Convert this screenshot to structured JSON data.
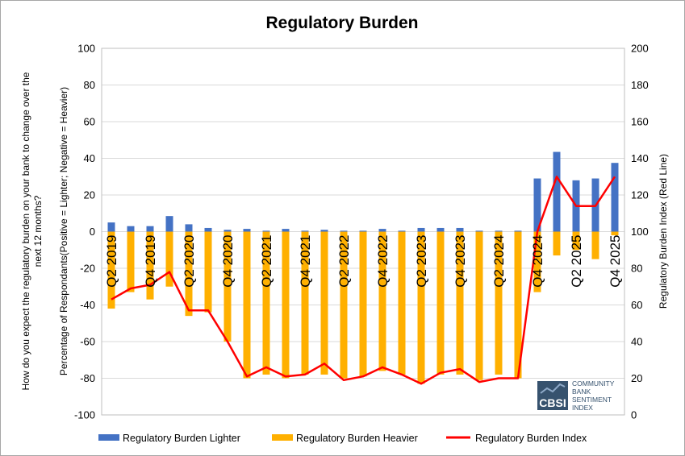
{
  "chart_data": {
    "type": "bar",
    "title": "Regulatory Burden",
    "ylabel_lines": [
      "How do you expect the regulatory burden on your bank to change over the",
      "next 12 months?"
    ],
    "ylabel_inner": "Percentage of Respondants(Positive = Lighter; Negative = Heavier)",
    "y2label": "Regulatory Burden Index (Red Line)",
    "ylim": [
      -100,
      100
    ],
    "y2lim": [
      0,
      200
    ],
    "yticks": [
      "100",
      "80",
      "60",
      "40",
      "20",
      "0",
      "-20",
      "-40",
      "-60",
      "-80",
      "-100"
    ],
    "y2ticks": [
      "200",
      "180",
      "160",
      "140",
      "120",
      "100",
      "80",
      "60",
      "40",
      "20",
      "0"
    ],
    "grid": true,
    "legend_position": "bottom",
    "category_labels": [
      {
        "index": 0,
        "label": "Q2 2019"
      },
      {
        "index": 2,
        "label": "Q4 2019"
      },
      {
        "index": 4,
        "label": "Q2 2020"
      },
      {
        "index": 6,
        "label": "Q4 2020"
      },
      {
        "index": 8,
        "label": "Q2 2021"
      },
      {
        "index": 10,
        "label": "Q4 2021"
      },
      {
        "index": 12,
        "label": "Q2 2022"
      },
      {
        "index": 14,
        "label": "Q4 2022"
      },
      {
        "index": 16,
        "label": "Q2 2023"
      },
      {
        "index": 18,
        "label": "Q4 2023"
      },
      {
        "index": 20,
        "label": "Q2 2024"
      },
      {
        "index": 22,
        "label": "Q4 2024"
      },
      {
        "index": 24,
        "label": "Q2 2025"
      },
      {
        "index": 26,
        "label": "Q4 2025"
      }
    ],
    "series": [
      {
        "name": "Regulatory Burden Lighter",
        "type": "bar",
        "axis": "left",
        "color": "#4472c4",
        "values": [
          5,
          3,
          3,
          8.5,
          4,
          2,
          1,
          1.5,
          0.5,
          1.5,
          0.5,
          1,
          0.5,
          0.5,
          1.5,
          0.5,
          2,
          2,
          2,
          0.5,
          0.5,
          0.5,
          29,
          43.5,
          28,
          29,
          37.5
        ]
      },
      {
        "name": "Regulatory Burden Heavier",
        "type": "bar",
        "axis": "left",
        "color": "#ffb000",
        "values": [
          -42,
          -33,
          -37,
          -30,
          -46,
          -44,
          -60,
          -80,
          -78,
          -80,
          -78,
          -78,
          -80,
          -79,
          -76,
          -78,
          -83,
          -78,
          -78,
          -81,
          -78,
          -80,
          -33,
          -13,
          -10,
          -15,
          -2
        ]
      },
      {
        "name": "Regulatory Burden Index",
        "type": "line",
        "axis": "right",
        "color": "#ff0000",
        "values": [
          63,
          69,
          71,
          78,
          57,
          57,
          40,
          21,
          26,
          21,
          22,
          28,
          19,
          21,
          26,
          22,
          17,
          23,
          25,
          18,
          20,
          20,
          100,
          130,
          114,
          114,
          130
        ]
      }
    ]
  },
  "logo": {
    "name": "CBSI",
    "lines": [
      "COMMUNITY",
      "BANK",
      "SENTIMENT",
      "INDEX"
    ],
    "colors": {
      "dark": "#36526e",
      "light": "#8ea9c8"
    }
  }
}
